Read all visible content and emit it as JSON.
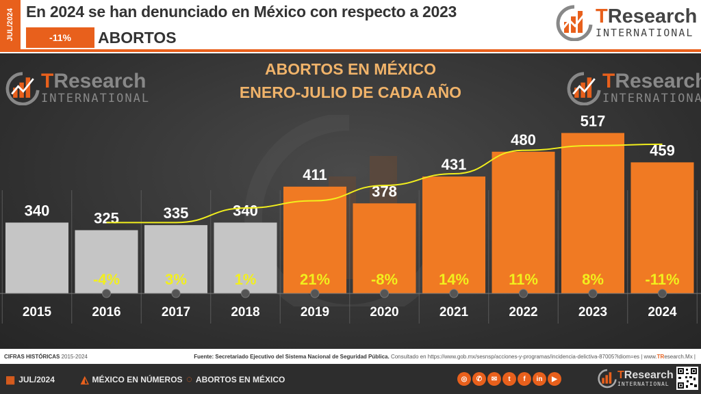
{
  "header": {
    "side_tag": "JUL/2024",
    "headline": "En 2024 se han denunciado en México con respecto a 2023",
    "change_pct": "-11%",
    "subject": "ABORTOS"
  },
  "logo": {
    "t": "T",
    "research": "Research",
    "international": "INTERNATIONAL"
  },
  "chart_data": {
    "type": "bar",
    "title": "ABORTOS EN MÉXICO",
    "subtitle": "ENERO-JULIO DE CADA AÑO",
    "categories": [
      "2015",
      "2016",
      "2017",
      "2018",
      "2019",
      "2020",
      "2021",
      "2022",
      "2023",
      "2024"
    ],
    "values": [
      340,
      325,
      335,
      340,
      411,
      378,
      431,
      480,
      517,
      459
    ],
    "value_labels": [
      "340",
      "325",
      "335",
      "340",
      "411",
      "378",
      "431",
      "480",
      "517",
      "459"
    ],
    "pct_change": [
      "",
      "-4%",
      "3%",
      "1%",
      "21%",
      "-8%",
      "14%",
      "11%",
      "8%",
      "-11%"
    ],
    "trend_line": {
      "x_from": "2016",
      "x_to": "2024"
    },
    "colors": {
      "historical": "#c5c5c5",
      "recent": "#f07a23",
      "trend": "#f2ef1d",
      "pct_text": "#f2ef1d",
      "value_text": "#ffffff"
    },
    "recent_from": "2019"
  },
  "footer": {
    "historic_label": "CIFRAS HISTÓRICAS",
    "historic_range": "2015-2024",
    "source_bold": "Fuente: Secretariado Ejecutivo del Sistema Nacional de Seguridad Pública.",
    "source_rest": "Consultado en https://www.gob.mx/sesnsp/acciones-y-programas/incidencia-delictiva-87005?idiom=es |",
    "site_pre": "www.",
    "site_bold": "TR",
    "site_post": "esearch.Mx |",
    "nav": [
      "JUL/2024",
      "MÉXICO EN NÚMEROS",
      "ABORTOS EN MÉXICO"
    ],
    "social_icons": [
      "globe-icon",
      "phone-icon",
      "mail-icon",
      "twitter-icon",
      "facebook-icon",
      "linkedin-icon",
      "youtube-icon"
    ],
    "social_glyphs": [
      "◎",
      "✆",
      "✉",
      "t",
      "f",
      "in",
      "▶"
    ]
  }
}
